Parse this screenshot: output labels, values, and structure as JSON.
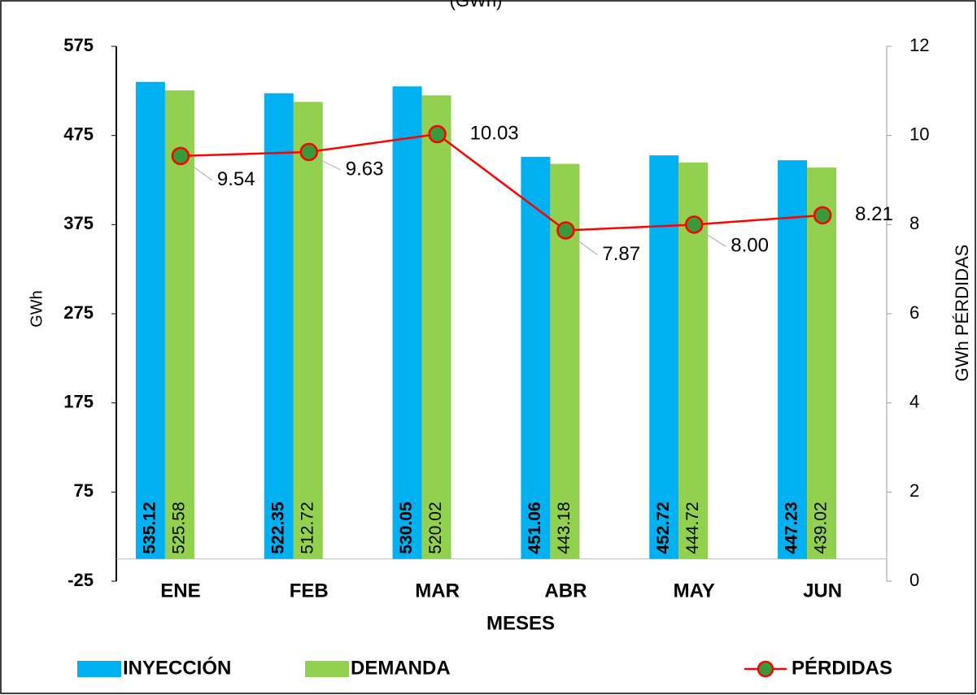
{
  "chart_data": {
    "type": "bar",
    "title": "(GWh)",
    "categories": [
      "ENE",
      "FEB",
      "MAR",
      "ABR",
      "MAY",
      "JUN"
    ],
    "series": [
      {
        "name": "INYECCIÓN",
        "type": "bar",
        "color": "#00b0f0",
        "values": [
          535.12,
          522.35,
          530.05,
          451.06,
          452.72,
          447.23
        ]
      },
      {
        "name": "DEMANDA",
        "type": "bar",
        "color": "#92d050",
        "values": [
          525.58,
          512.72,
          520.02,
          443.18,
          444.72,
          439.02
        ]
      },
      {
        "name": "PÉRDIDAS",
        "type": "line",
        "axis": "y2",
        "color": "#ff0000",
        "marker_color": "#3a9a3a",
        "values": [
          9.54,
          9.63,
          10.03,
          7.87,
          8.0,
          8.21
        ],
        "value_labels": [
          "9.54",
          "9.63",
          "10.03",
          "7.87",
          "8.00",
          "8.21"
        ]
      }
    ],
    "xlabel": "MESES",
    "ylabel": "GWh",
    "y2label": "GWh PÉRDIDAS",
    "ylim": [
      -25,
      575
    ],
    "yticks": [
      -25,
      75,
      175,
      275,
      375,
      475,
      575
    ],
    "y2lim": [
      0,
      12
    ],
    "y2ticks": [
      0,
      2,
      4,
      6,
      8,
      10,
      12
    ],
    "grid": false
  }
}
